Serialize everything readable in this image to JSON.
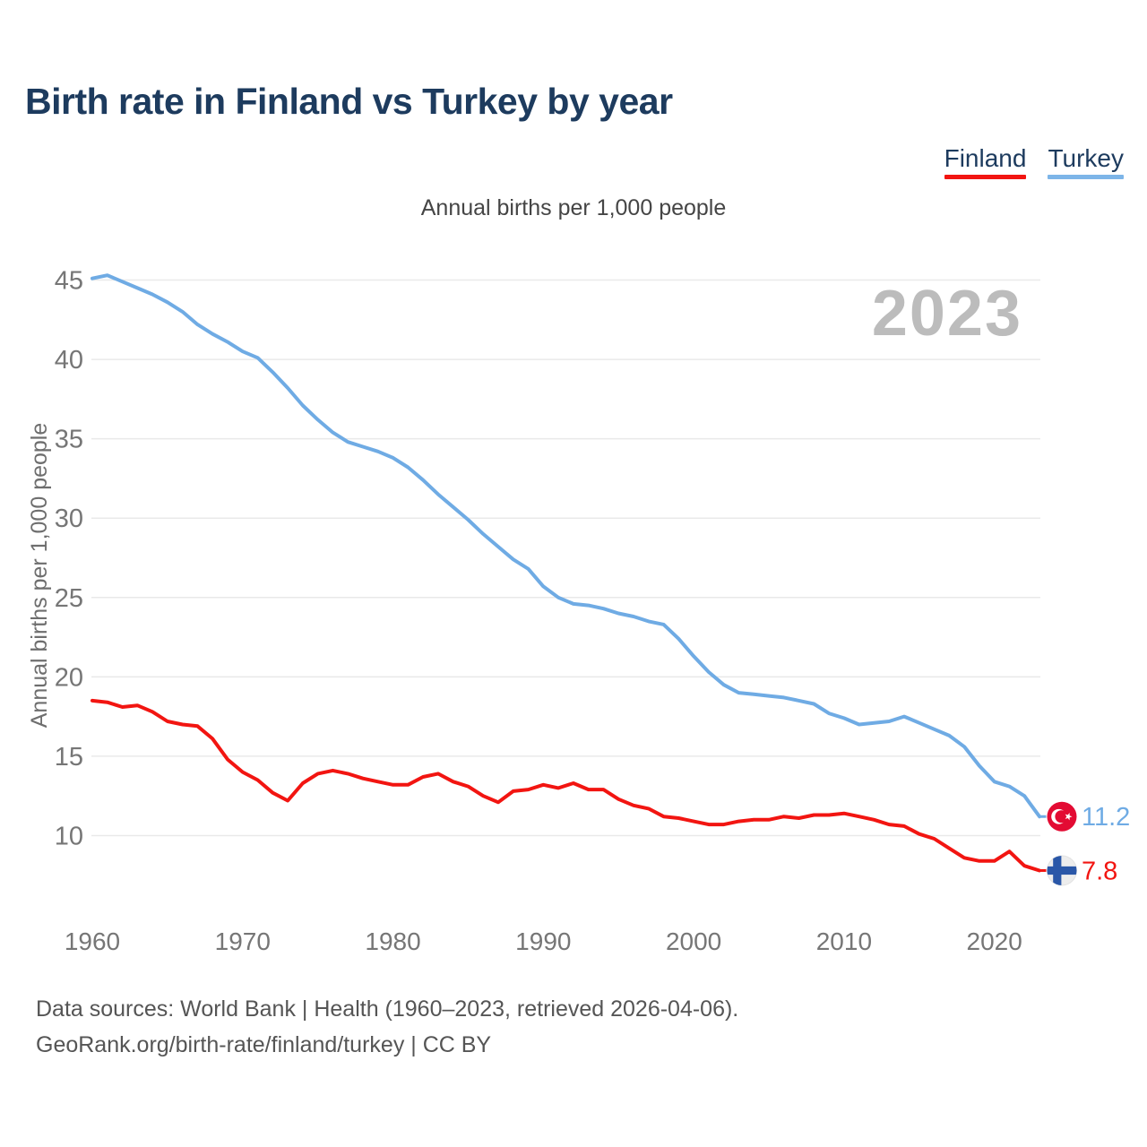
{
  "page": {
    "title": "Birth rate in Finland vs Turkey by year",
    "subtitle": "Annual births per 1,000 people",
    "watermark": "2023",
    "footer_line1": "Data sources: World Bank | Health (1960–2023, retrieved 2026-04-06).",
    "footer_line2": "GeoRank.org/birth-rate/finland/turkey | CC BY"
  },
  "legend": {
    "items": [
      {
        "label": "Finland",
        "color": "#f21511"
      },
      {
        "label": "Turkey",
        "color": "#7db5e8"
      }
    ]
  },
  "colors": {
    "title_text": "#1d3b5e",
    "grid_line": "#e9e9e9",
    "tick_label": "#767676",
    "axis_title": "#6e6e6e",
    "watermark": "#bcbcbc",
    "subtitle_text": "#454545",
    "footer_text": "#555555",
    "turkey_flag_red": "#e30b33",
    "finland_flag_blue": "#2a57a8",
    "flag_background": "#ededed"
  },
  "chart_data": {
    "type": "line",
    "title": "Birth rate in Finland vs Turkey by year",
    "subtitle": "Annual births per 1,000 people",
    "xlabel": "",
    "ylabel": "Annual births per 1,000 people",
    "grid": "horizontal",
    "legend_position": "top-right",
    "xlim": [
      1960,
      2023
    ],
    "ylim": [
      7,
      46
    ],
    "x_ticks": [
      1960,
      1970,
      1980,
      1990,
      2000,
      2010,
      2020
    ],
    "y_ticks": [
      10,
      15,
      20,
      25,
      30,
      35,
      40,
      45
    ],
    "years": [
      1960,
      1961,
      1962,
      1963,
      1964,
      1965,
      1966,
      1967,
      1968,
      1969,
      1970,
      1971,
      1972,
      1973,
      1974,
      1975,
      1976,
      1977,
      1978,
      1979,
      1980,
      1981,
      1982,
      1983,
      1984,
      1985,
      1986,
      1987,
      1988,
      1989,
      1990,
      1991,
      1992,
      1993,
      1994,
      1995,
      1996,
      1997,
      1998,
      1999,
      2000,
      2001,
      2002,
      2003,
      2004,
      2005,
      2006,
      2007,
      2008,
      2009,
      2010,
      2011,
      2012,
      2013,
      2014,
      2015,
      2016,
      2017,
      2018,
      2019,
      2020,
      2021,
      2022,
      2023
    ],
    "series": [
      {
        "name": "Finland",
        "color": "#f21511",
        "end_label": "7.8",
        "end_flag": "finland",
        "values": [
          18.5,
          18.4,
          18.1,
          18.2,
          17.8,
          17.2,
          17.0,
          16.9,
          16.1,
          14.8,
          14.0,
          13.5,
          12.7,
          12.2,
          13.3,
          13.9,
          14.1,
          13.9,
          13.6,
          13.4,
          13.2,
          13.2,
          13.7,
          13.9,
          13.4,
          13.1,
          12.5,
          12.1,
          12.8,
          12.9,
          13.2,
          13.0,
          13.3,
          12.9,
          12.9,
          12.3,
          11.9,
          11.7,
          11.2,
          11.1,
          10.9,
          10.7,
          10.7,
          10.9,
          11.0,
          11.0,
          11.2,
          11.1,
          11.3,
          11.3,
          11.4,
          11.2,
          11.0,
          10.7,
          10.6,
          10.1,
          9.8,
          9.2,
          8.6,
          8.4,
          8.4,
          9.0,
          8.1,
          7.8
        ]
      },
      {
        "name": "Turkey",
        "color": "#6fabe4",
        "end_label": "11.2",
        "end_flag": "turkey",
        "values": [
          45.1,
          45.3,
          44.9,
          44.5,
          44.1,
          43.6,
          43.0,
          42.2,
          41.6,
          41.1,
          40.5,
          40.1,
          39.2,
          38.2,
          37.1,
          36.2,
          35.4,
          34.8,
          34.5,
          34.2,
          33.8,
          33.2,
          32.4,
          31.5,
          30.7,
          29.9,
          29.0,
          28.2,
          27.4,
          26.8,
          25.7,
          25.0,
          24.6,
          24.5,
          24.3,
          24.0,
          23.8,
          23.5,
          23.3,
          22.4,
          21.3,
          20.3,
          19.5,
          19.0,
          18.9,
          18.8,
          18.7,
          18.5,
          18.3,
          17.7,
          17.4,
          17.0,
          17.1,
          17.2,
          17.5,
          17.1,
          16.7,
          16.3,
          15.6,
          14.4,
          13.4,
          13.1,
          12.5,
          11.2
        ]
      }
    ]
  }
}
